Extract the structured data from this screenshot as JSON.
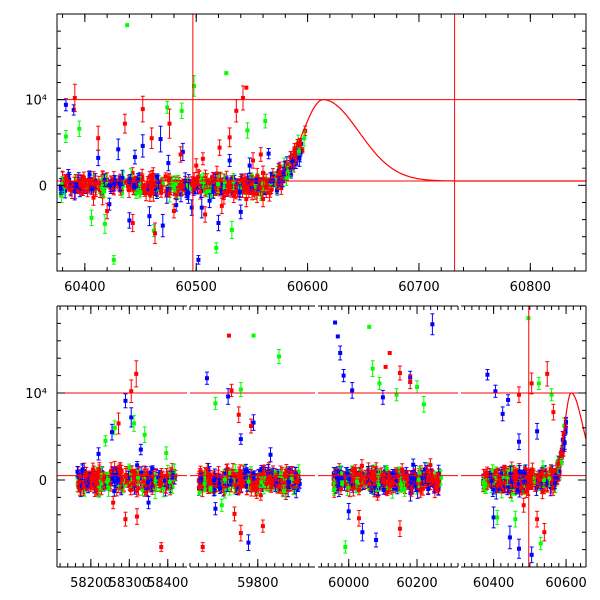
{
  "colors": {
    "axis": "#000000",
    "red": "#ff0000",
    "blue": "#0000ff",
    "green": "#00ff00",
    "model_line": "#ff0000"
  },
  "chart_data": [
    {
      "type": "scatter",
      "panel": "top",
      "title": "",
      "xlabel": "",
      "ylabel": "",
      "xlim": [
        60375,
        60850
      ],
      "ylim": [
        -10000,
        20000
      ],
      "x_ticks": [
        {
          "value": 60400,
          "label": "60400"
        },
        {
          "value": 60500,
          "label": "60500"
        },
        {
          "value": 60600,
          "label": "60600"
        },
        {
          "value": 60700,
          "label": "60700"
        },
        {
          "value": 60800,
          "label": "60800"
        }
      ],
      "y_ticks": [
        {
          "value": 0,
          "label": "0"
        },
        {
          "value": 10000,
          "label": "10⁴"
        }
      ],
      "reference_lines": {
        "horizontal": [
          10000,
          500
        ],
        "vertical": [
          60497,
          60732
        ]
      },
      "model_curve": {
        "baseline": 500,
        "peak_x": 60614,
        "peak_y": 10000,
        "rise_from_x": 60560,
        "rise_width": 18,
        "decay_width": 32
      },
      "series": [
        {
          "color": "blue",
          "points": [
            [
              60383,
              9400,
              700
            ],
            [
              60390,
              8800,
              600
            ],
            [
              60412,
              3200,
              900
            ],
            [
              60430,
              4200,
              1200
            ],
            [
              60445,
              3300,
              800
            ],
            [
              60452,
              4600,
              1300
            ],
            [
              60468,
              5400,
              1500
            ],
            [
              60475,
              2600,
              900
            ],
            [
              60488,
              3900,
              1000
            ],
            [
              60493,
              -900,
              1200
            ],
            [
              60496,
              -2600,
              900
            ],
            [
              60502,
              -8700,
              500
            ],
            [
              60512,
              -1800,
              800
            ],
            [
              60530,
              2900,
              700
            ],
            [
              60548,
              2300,
              900
            ],
            [
              60565,
              3700,
              600
            ],
            [
              60422,
              -2200,
              700
            ],
            [
              60440,
              -4100,
              900
            ],
            [
              60458,
              -3600,
              1100
            ],
            [
              60470,
              -4700,
              1300
            ],
            [
              60482,
              -2300,
              700
            ],
            [
              60505,
              -2600,
              1200
            ],
            [
              60520,
              -4400,
              900
            ],
            [
              60540,
              -3100,
              800
            ],
            [
              60578,
              1600,
              500
            ]
          ]
        },
        {
          "color": "green",
          "points": [
            [
              60438,
              18700,
              0
            ],
            [
              60498,
              11600,
              1200
            ],
            [
              60527,
              13100,
              0
            ],
            [
              60383,
              5700,
              700
            ],
            [
              60395,
              6600,
              900
            ],
            [
              60406,
              -3800,
              900
            ],
            [
              60418,
              -4500,
              1100
            ],
            [
              60426,
              -8700,
              500
            ],
            [
              60462,
              -5300,
              700
            ],
            [
              60518,
              -7300,
              600
            ],
            [
              60532,
              -5200,
              1000
            ],
            [
              60546,
              6400,
              900
            ],
            [
              60562,
              7500,
              800
            ],
            [
              60474,
              9100,
              700
            ],
            [
              60487,
              8700,
              900
            ]
          ]
        },
        {
          "color": "red",
          "points": [
            [
              60391,
              10200,
              1600
            ],
            [
              60412,
              5500,
              1400
            ],
            [
              60436,
              7200,
              1100
            ],
            [
              60452,
              8900,
              1500
            ],
            [
              60460,
              5500,
              1200
            ],
            [
              60476,
              7200,
              1700
            ],
            [
              60486,
              3600,
              900
            ],
            [
              60500,
              2300,
              800
            ],
            [
              60506,
              3100,
              700
            ],
            [
              60521,
              4400,
              900
            ],
            [
              60530,
              5600,
              1100
            ],
            [
              60536,
              8700,
              1300
            ],
            [
              60542,
              10200,
              1400
            ],
            [
              60545,
              11400,
              0
            ],
            [
              60551,
              2900,
              900
            ],
            [
              60558,
              3600,
              800
            ],
            [
              60420,
              -3000,
              900
            ],
            [
              60443,
              -4400,
              1000
            ],
            [
              60463,
              -5600,
              1200
            ],
            [
              60480,
              -3000,
              800
            ],
            [
              60508,
              -3400,
              900
            ],
            [
              60523,
              -2400,
              900
            ],
            [
              60545,
              -1600,
              900
            ],
            [
              60560,
              -1600,
              900
            ],
            [
              60575,
              2200,
              500
            ]
          ]
        }
      ]
    },
    {
      "type": "scatter",
      "panel": "bottom",
      "title": "",
      "xlabel": "",
      "ylabel": "",
      "ylim": [
        -10000,
        20000
      ],
      "broken_x_axis": true,
      "segments": [
        {
          "xlim": [
            58112,
            58450
          ],
          "ticks": [
            {
              "value": 58200,
              "label": "58200"
            },
            {
              "value": 58300,
              "label": "58300"
            },
            {
              "value": 58400,
              "label": "58400"
            }
          ],
          "data_range": [
            58165,
            58420
          ]
        },
        {
          "xlim": [
            59640,
            59935
          ],
          "ticks": [
            {
              "value": 59800,
              "label": "59800"
            }
          ],
          "data_range": [
            59660,
            59900
          ]
        },
        {
          "xlim": [
            59910,
            60320
          ],
          "ticks": [
            {
              "value": 60000,
              "label": "60000"
            },
            {
              "value": 60200,
              "label": "60200"
            }
          ],
          "data_range": [
            59955,
            60270
          ]
        },
        {
          "xlim": [
            60310,
            60655
          ],
          "ticks": [
            {
              "value": 60400,
              "label": "60400"
            },
            {
              "value": 60600,
              "label": "60600"
            }
          ],
          "data_range": [
            60370,
            60600
          ]
        }
      ],
      "y_ticks": [
        {
          "value": 0,
          "label": "0"
        },
        {
          "value": 10000,
          "label": "10⁴"
        }
      ],
      "reference_lines": {
        "horizontal": [
          10000,
          500
        ],
        "vertical_segment_index": 3,
        "vertical": [
          60497
        ]
      },
      "model_curve": {
        "segment_index": 3,
        "baseline": 500,
        "peak_x": 60614,
        "peak_y": 10000,
        "rise_from_x": 60560,
        "rise_width": 18,
        "decay_width": 32
      },
      "outliers": [
        {
          "segment": 0,
          "color": "blue",
          "points": [
            [
              58220,
              3000,
              700
            ],
            [
              58255,
              5500,
              900
            ],
            [
              58290,
              9100,
              800
            ],
            [
              58305,
              7200,
              1100
            ],
            [
              58330,
              3500,
              600
            ],
            [
              58350,
              -2600,
              700
            ]
          ]
        },
        {
          "segment": 0,
          "color": "green",
          "points": [
            [
              58238,
              4500,
              600
            ],
            [
              58262,
              6000,
              800
            ],
            [
              58312,
              6500,
              900
            ],
            [
              58340,
              5200,
              900
            ],
            [
              58396,
              3100,
              700
            ]
          ]
        },
        {
          "segment": 0,
          "color": "red",
          "points": [
            [
              58305,
              10200,
              1300
            ],
            [
              58318,
              12200,
              1500
            ],
            [
              58272,
              6500,
              1200
            ],
            [
              58258,
              -2600,
              700
            ],
            [
              58290,
              -4500,
              800
            ],
            [
              58320,
              -4200,
              900
            ],
            [
              58383,
              -7700,
              500
            ]
          ]
        },
        {
          "segment": 1,
          "color": "blue",
          "points": [
            [
              59680,
              11700,
              700
            ],
            [
              59730,
              9600,
              900
            ],
            [
              59760,
              4700,
              600
            ],
            [
              59790,
              6600,
              900
            ],
            [
              59830,
              2900,
              800
            ],
            [
              59700,
              -3300,
              700
            ],
            [
              59778,
              -7200,
              900
            ]
          ]
        },
        {
          "segment": 1,
          "color": "green",
          "points": [
            [
              59700,
              8800,
              700
            ],
            [
              59760,
              10400,
              800
            ],
            [
              59790,
              16600,
              0
            ],
            [
              59850,
              14200,
              800
            ],
            [
              59715,
              -2900,
              700
            ]
          ]
        },
        {
          "segment": 1,
          "color": "red",
          "points": [
            [
              59670,
              -7700,
              500
            ],
            [
              59732,
              16600,
              0
            ],
            [
              59738,
              10300,
              700
            ],
            [
              59755,
              7500,
              900
            ],
            [
              59784,
              6200,
              800
            ],
            [
              59745,
              -3900,
              800
            ],
            [
              59760,
              -6100,
              900
            ],
            [
              59812,
              -5300,
              700
            ]
          ]
        },
        {
          "segment": 2,
          "color": "blue",
          "points": [
            [
              59960,
              18100,
              0
            ],
            [
              59968,
              16500,
              0
            ],
            [
              59975,
              14600,
              800
            ],
            [
              59985,
              12000,
              700
            ],
            [
              60010,
              10300,
              900
            ],
            [
              60100,
              9500,
              800
            ],
            [
              60180,
              11800,
              700
            ],
            [
              60245,
              17900,
              1200
            ],
            [
              60000,
              -3600,
              900
            ],
            [
              60040,
              -6000,
              1000
            ],
            [
              60080,
              -6900,
              800
            ]
          ]
        },
        {
          "segment": 2,
          "color": "green",
          "points": [
            [
              60060,
              17600,
              0
            ],
            [
              60070,
              12800,
              900
            ],
            [
              60090,
              11100,
              700
            ],
            [
              60140,
              9800,
              700
            ],
            [
              60200,
              10700,
              700
            ],
            [
              60220,
              8700,
              900
            ],
            [
              59990,
              -7700,
              700
            ]
          ]
        },
        {
          "segment": 2,
          "color": "red",
          "points": [
            [
              60108,
              13000,
              0
            ],
            [
              60120,
              14600,
              0
            ],
            [
              60150,
              12300,
              800
            ],
            [
              60180,
              11300,
              800
            ],
            [
              60030,
              -4400,
              900
            ],
            [
              60150,
              -5600,
              900
            ]
          ]
        },
        {
          "segment": 3,
          "color": "blue",
          "points": [
            [
              60383,
              12100,
              600
            ],
            [
              60405,
              10200,
              700
            ],
            [
              60425,
              7600,
              800
            ],
            [
              60440,
              9200,
              600
            ],
            [
              60470,
              4400,
              900
            ],
            [
              60520,
              5600,
              900
            ],
            [
              60400,
              -4300,
              1200
            ],
            [
              60445,
              -6600,
              1300
            ],
            [
              60470,
              -7900,
              1100
            ],
            [
              60505,
              -8600,
              900
            ]
          ]
        },
        {
          "segment": 3,
          "color": "green",
          "points": [
            [
              60496,
              18600,
              0
            ],
            [
              60525,
              11100,
              700
            ],
            [
              60560,
              9800,
              700
            ],
            [
              60410,
              -4300,
              800
            ],
            [
              60460,
              -4500,
              900
            ],
            [
              60530,
              -7300,
              700
            ]
          ]
        },
        {
          "segment": 3,
          "color": "red",
          "points": [
            [
              60470,
              9800,
              900
            ],
            [
              60505,
              11100,
              1200
            ],
            [
              60548,
              12200,
              1400
            ],
            [
              60565,
              7800,
              900
            ],
            [
              60483,
              -2900,
              800
            ],
            [
              60520,
              -4500,
              900
            ],
            [
              60540,
              -6000,
              1000
            ]
          ]
        }
      ]
    }
  ]
}
